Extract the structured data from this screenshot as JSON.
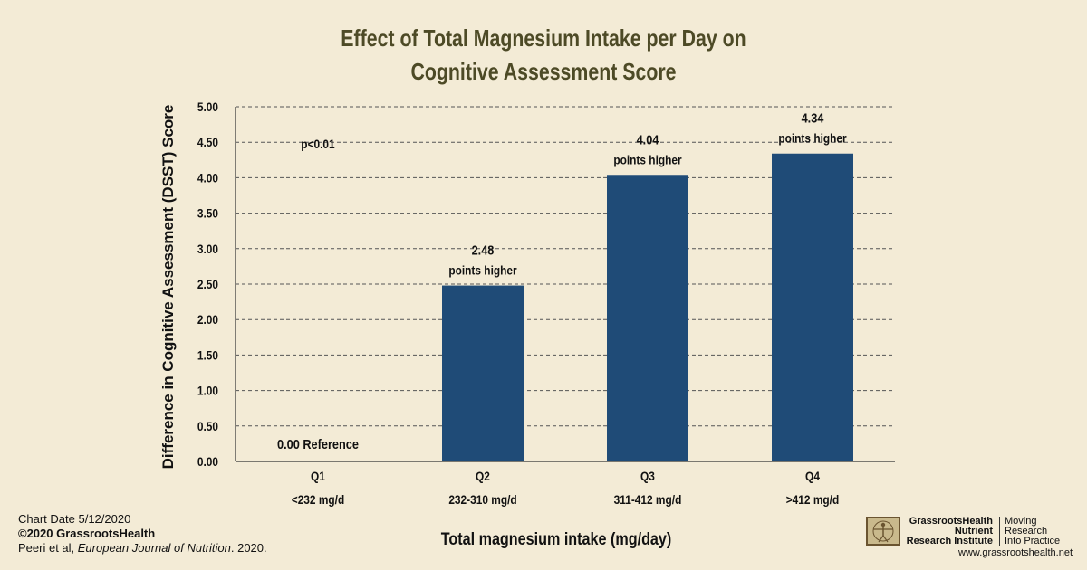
{
  "chart_data": {
    "type": "bar",
    "title_lines": [
      "Effect of Total Magnesium Intake per Day on",
      "Cognitive Assessment Score"
    ],
    "ylabel": "Difference in Cognitive Assessment (DSST) Score",
    "xlabel": "Total magnesium intake (mg/day)",
    "categories": [
      {
        "name": "Q1",
        "range": "<232 mg/d"
      },
      {
        "name": "Q2",
        "range": "232-310 mg/d"
      },
      {
        "name": "Q3",
        "range": "311-412 mg/d"
      },
      {
        "name": "Q4",
        "range": ">412 mg/d"
      }
    ],
    "values": [
      0.0,
      2.48,
      4.04,
      4.34
    ],
    "value_labels": [
      {
        "value": "0.00 Reference",
        "note": ""
      },
      {
        "value": "2.48",
        "note": "points higher"
      },
      {
        "value": "4.04",
        "note": "points higher"
      },
      {
        "value": "4.34",
        "note": "points higher"
      }
    ],
    "ylim": [
      0,
      5
    ],
    "yticks": [
      "0.00",
      "0.50",
      "1.00",
      "1.50",
      "2.00",
      "2.50",
      "3.00",
      "3.50",
      "4.00",
      "4.50",
      "5.00"
    ],
    "grid": true,
    "annotation": "p<0.01",
    "bar_color": "#1f4b77"
  },
  "footer": {
    "chart_date": "Chart Date 5/12/2020",
    "copyright": "©2020 GrassrootsHealth",
    "citation_authors": "Peeri et al, ",
    "citation_journal": "European Journal of Nutrition",
    "citation_year": ". 2020."
  },
  "logo": {
    "org_line1": "GrassrootsHealth",
    "org_line2": "Nutrient",
    "org_line3": "Research Institute",
    "tag_line1": "Moving",
    "tag_line2": "Research",
    "tag_line3": "Into Practice",
    "url": "www.grassrootshealth.net"
  }
}
